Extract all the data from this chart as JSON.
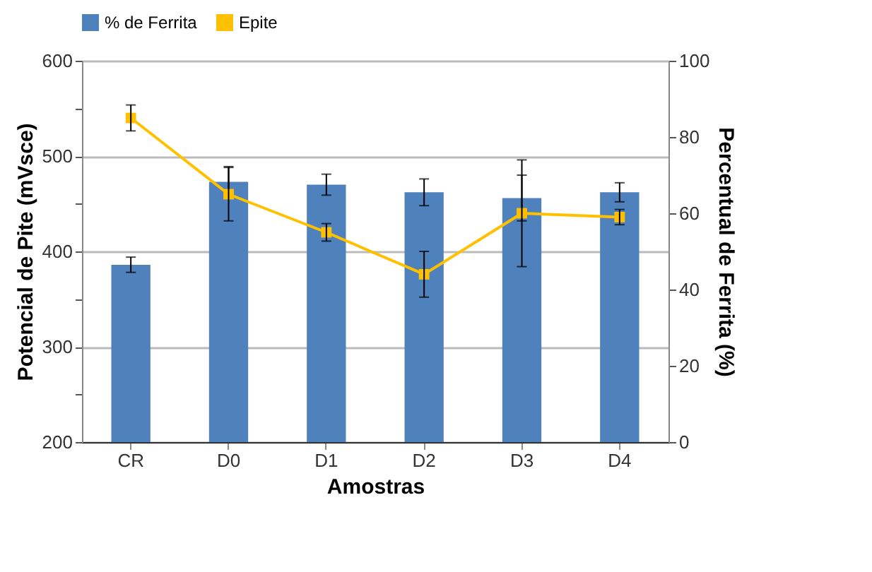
{
  "chart_data": {
    "type": "bar",
    "categories": [
      "CR",
      "D0",
      "D1",
      "D2",
      "D3",
      "D4"
    ],
    "xlabel": "Amostras",
    "ylabel": "Potencial de Pite (mVsce)",
    "y2label": "Percentual de Ferrita (%)",
    "ylim": [
      200,
      600
    ],
    "yticks": [
      200,
      {
        "value": 250,
        "label": null
      },
      300,
      {
        "value": 350,
        "label": null
      },
      400,
      {
        "value": 450,
        "label": null
      },
      500,
      {
        "value": 550,
        "label": null
      },
      600
    ],
    "y2lim": [
      0,
      100
    ],
    "y2ticks": [
      0,
      20,
      40,
      60,
      80,
      100
    ],
    "grid": "y",
    "legend": "top",
    "marker": "square",
    "series": [
      {
        "name": "% de Ferrita",
        "color": "#4f81bd",
        "values": [
          386,
          473,
          470,
          462,
          456,
          462
        ],
        "errors": [
          8,
          16,
          11,
          14,
          24,
          10
        ]
      },
      {
        "name": "Epite",
        "type": "line",
        "axis": "y2",
        "color": "#ffc000",
        "values": [
          85,
          65,
          55,
          44,
          60,
          59
        ],
        "errors": [
          3.4,
          7,
          2.3,
          6,
          14,
          2
        ]
      }
    ]
  }
}
